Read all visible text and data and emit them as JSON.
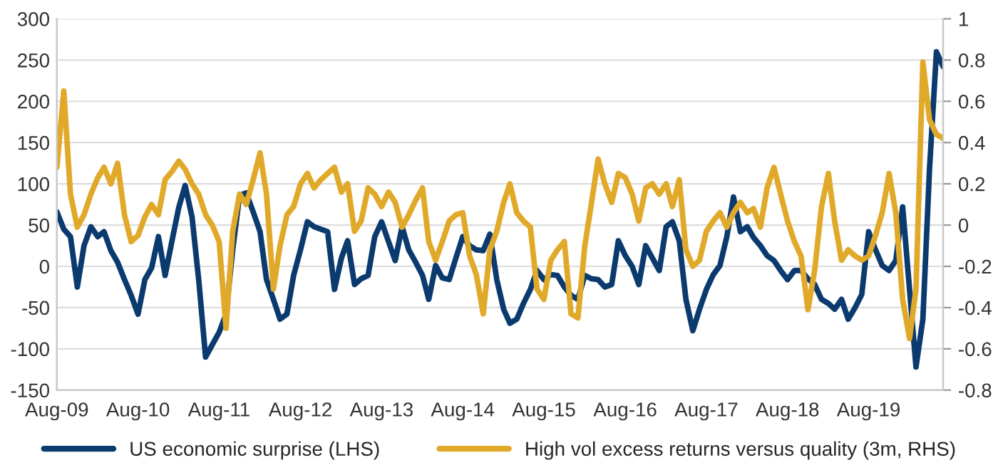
{
  "chart_data": {
    "type": "line",
    "x": [
      "2009-08",
      "2009-09",
      "2009-10",
      "2009-11",
      "2009-12",
      "2010-01",
      "2010-02",
      "2010-03",
      "2010-04",
      "2010-05",
      "2010-06",
      "2010-07",
      "2010-08",
      "2010-09",
      "2010-10",
      "2010-11",
      "2010-12",
      "2011-01",
      "2011-02",
      "2011-03",
      "2011-04",
      "2011-05",
      "2011-06",
      "2011-07",
      "2011-08",
      "2011-09",
      "2011-10",
      "2011-11",
      "2011-12",
      "2012-01",
      "2012-02",
      "2012-03",
      "2012-04",
      "2012-05",
      "2012-06",
      "2012-07",
      "2012-08",
      "2012-09",
      "2012-10",
      "2012-11",
      "2012-12",
      "2013-01",
      "2013-02",
      "2013-03",
      "2013-04",
      "2013-05",
      "2013-06",
      "2013-07",
      "2013-08",
      "2013-09",
      "2013-10",
      "2013-11",
      "2013-12",
      "2014-01",
      "2014-02",
      "2014-03",
      "2014-04",
      "2014-05",
      "2014-06",
      "2014-07",
      "2014-08",
      "2014-09",
      "2014-10",
      "2014-11",
      "2014-12",
      "2015-01",
      "2015-02",
      "2015-03",
      "2015-04",
      "2015-05",
      "2015-06",
      "2015-07",
      "2015-08",
      "2015-09",
      "2015-10",
      "2015-11",
      "2015-12",
      "2016-01",
      "2016-02",
      "2016-03",
      "2016-04",
      "2016-05",
      "2016-06",
      "2016-07",
      "2016-08",
      "2016-09",
      "2016-10",
      "2016-11",
      "2016-12",
      "2017-01",
      "2017-02",
      "2017-03",
      "2017-04",
      "2017-05",
      "2017-06",
      "2017-07",
      "2017-08",
      "2017-09",
      "2017-10",
      "2017-11",
      "2017-12",
      "2018-01",
      "2018-02",
      "2018-03",
      "2018-04",
      "2018-05",
      "2018-06",
      "2018-07",
      "2018-08",
      "2018-09",
      "2018-10",
      "2018-11",
      "2018-12",
      "2019-01",
      "2019-02",
      "2019-03",
      "2019-04",
      "2019-05",
      "2019-06",
      "2019-07",
      "2019-08",
      "2019-09",
      "2019-10",
      "2019-11",
      "2019-12",
      "2020-01",
      "2020-02",
      "2020-03",
      "2020-04",
      "2020-05",
      "2020-06",
      "2020-07"
    ],
    "series": [
      {
        "name": "US economic surprise (LHS)",
        "color": "#0b3a6e",
        "values": [
          66,
          45,
          36,
          -25,
          25,
          48,
          36,
          42,
          19,
          5,
          -16,
          -35,
          -58,
          -16,
          -2,
          36,
          -11,
          31,
          72,
          98,
          60,
          -16,
          -110,
          -95,
          -80,
          -58,
          20,
          86,
          89,
          66,
          42,
          -16,
          -40,
          -64,
          -58,
          -11,
          20,
          54,
          48,
          45,
          42,
          -28,
          10,
          31,
          -22,
          -15,
          -11,
          36,
          54,
          30,
          7,
          48,
          20,
          5,
          -11,
          -40,
          1,
          -14,
          -16,
          10,
          36,
          25,
          20,
          19,
          39,
          -16,
          -52,
          -69,
          -64,
          -45,
          -28,
          -5,
          -16,
          -10,
          -11,
          -25,
          -35,
          -40,
          -11,
          -15,
          -16,
          -25,
          -22,
          31,
          13,
          0,
          -22,
          25,
          10,
          -5,
          48,
          54,
          31,
          -40,
          -78,
          -52,
          -28,
          -10,
          1,
          36,
          84,
          42,
          48,
          35,
          25,
          13,
          7,
          -5,
          -16,
          -5,
          -5,
          -15,
          -22,
          -40,
          -45,
          -52,
          -40,
          -64,
          -50,
          -34,
          42,
          20,
          1,
          -5,
          7,
          72,
          -28,
          -122,
          -64,
          119,
          260,
          242
        ]
      },
      {
        "name": "High vol excess returns versus quality (3m, RHS)",
        "color": "#e0a92a",
        "axis": "y2",
        "values": [
          0.28,
          0.65,
          0.15,
          -0.01,
          0.05,
          0.15,
          0.23,
          0.28,
          0.2,
          0.3,
          0.05,
          -0.08,
          -0.05,
          0.04,
          0.1,
          0.05,
          0.22,
          0.26,
          0.31,
          0.27,
          0.2,
          0.15,
          0.05,
          0.0,
          -0.08,
          -0.5,
          -0.03,
          0.15,
          0.1,
          0.22,
          0.35,
          0.15,
          -0.31,
          -0.1,
          0.05,
          0.09,
          0.2,
          0.25,
          0.18,
          0.22,
          0.25,
          0.28,
          0.16,
          0.2,
          -0.03,
          0.02,
          0.18,
          0.15,
          0.09,
          0.16,
          0.11,
          -0.01,
          0.05,
          0.12,
          0.18,
          -0.08,
          -0.17,
          -0.08,
          0.02,
          0.05,
          0.06,
          -0.15,
          -0.24,
          -0.43,
          -0.12,
          -0.03,
          0.11,
          0.2,
          0.06,
          0.02,
          -0.01,
          -0.31,
          -0.36,
          -0.17,
          -0.12,
          -0.08,
          -0.43,
          -0.45,
          -0.1,
          0.1,
          0.32,
          0.2,
          0.11,
          0.25,
          0.23,
          0.15,
          0.02,
          0.18,
          0.2,
          0.15,
          0.2,
          0.09,
          0.22,
          -0.12,
          -0.2,
          -0.17,
          -0.03,
          0.02,
          0.06,
          -0.01,
          0.06,
          0.11,
          0.06,
          0.08,
          -0.01,
          0.18,
          0.28,
          0.15,
          0.02,
          -0.08,
          -0.15,
          -0.41,
          -0.22,
          0.09,
          0.25,
          0.02,
          -0.17,
          -0.12,
          -0.15,
          -0.17,
          -0.15,
          -0.05,
          0.06,
          0.25,
          0.06,
          -0.36,
          -0.55,
          -0.31,
          0.79,
          0.51,
          0.44,
          0.42
        ]
      }
    ],
    "xlim": [
      "2009-08",
      "2020-07"
    ],
    "xticks": [
      {
        "value": "2009-08",
        "label": "Aug-09"
      },
      {
        "value": "2010-08",
        "label": "Aug-10"
      },
      {
        "value": "2011-08",
        "label": "Aug-11"
      },
      {
        "value": "2012-08",
        "label": "Aug-12"
      },
      {
        "value": "2013-08",
        "label": "Aug-13"
      },
      {
        "value": "2014-08",
        "label": "Aug-14"
      },
      {
        "value": "2015-08",
        "label": "Aug-15"
      },
      {
        "value": "2016-08",
        "label": "Aug-16"
      },
      {
        "value": "2017-08",
        "label": "Aug-17"
      },
      {
        "value": "2018-08",
        "label": "Aug-18"
      },
      {
        "value": "2019-08",
        "label": "Aug-19"
      }
    ],
    "ylim": [
      -150,
      300
    ],
    "yticks": [
      -150,
      -100,
      -50,
      0,
      50,
      100,
      150,
      200,
      250,
      300
    ],
    "y2lim": [
      -0.8,
      1
    ],
    "y2ticks": [
      -0.8,
      -0.6,
      -0.4,
      -0.2,
      0,
      0.2,
      0.4,
      0.6,
      0.8,
      1
    ],
    "grid": "y",
    "legend": "bottom",
    "line_style": "solid",
    "marker": "none"
  }
}
